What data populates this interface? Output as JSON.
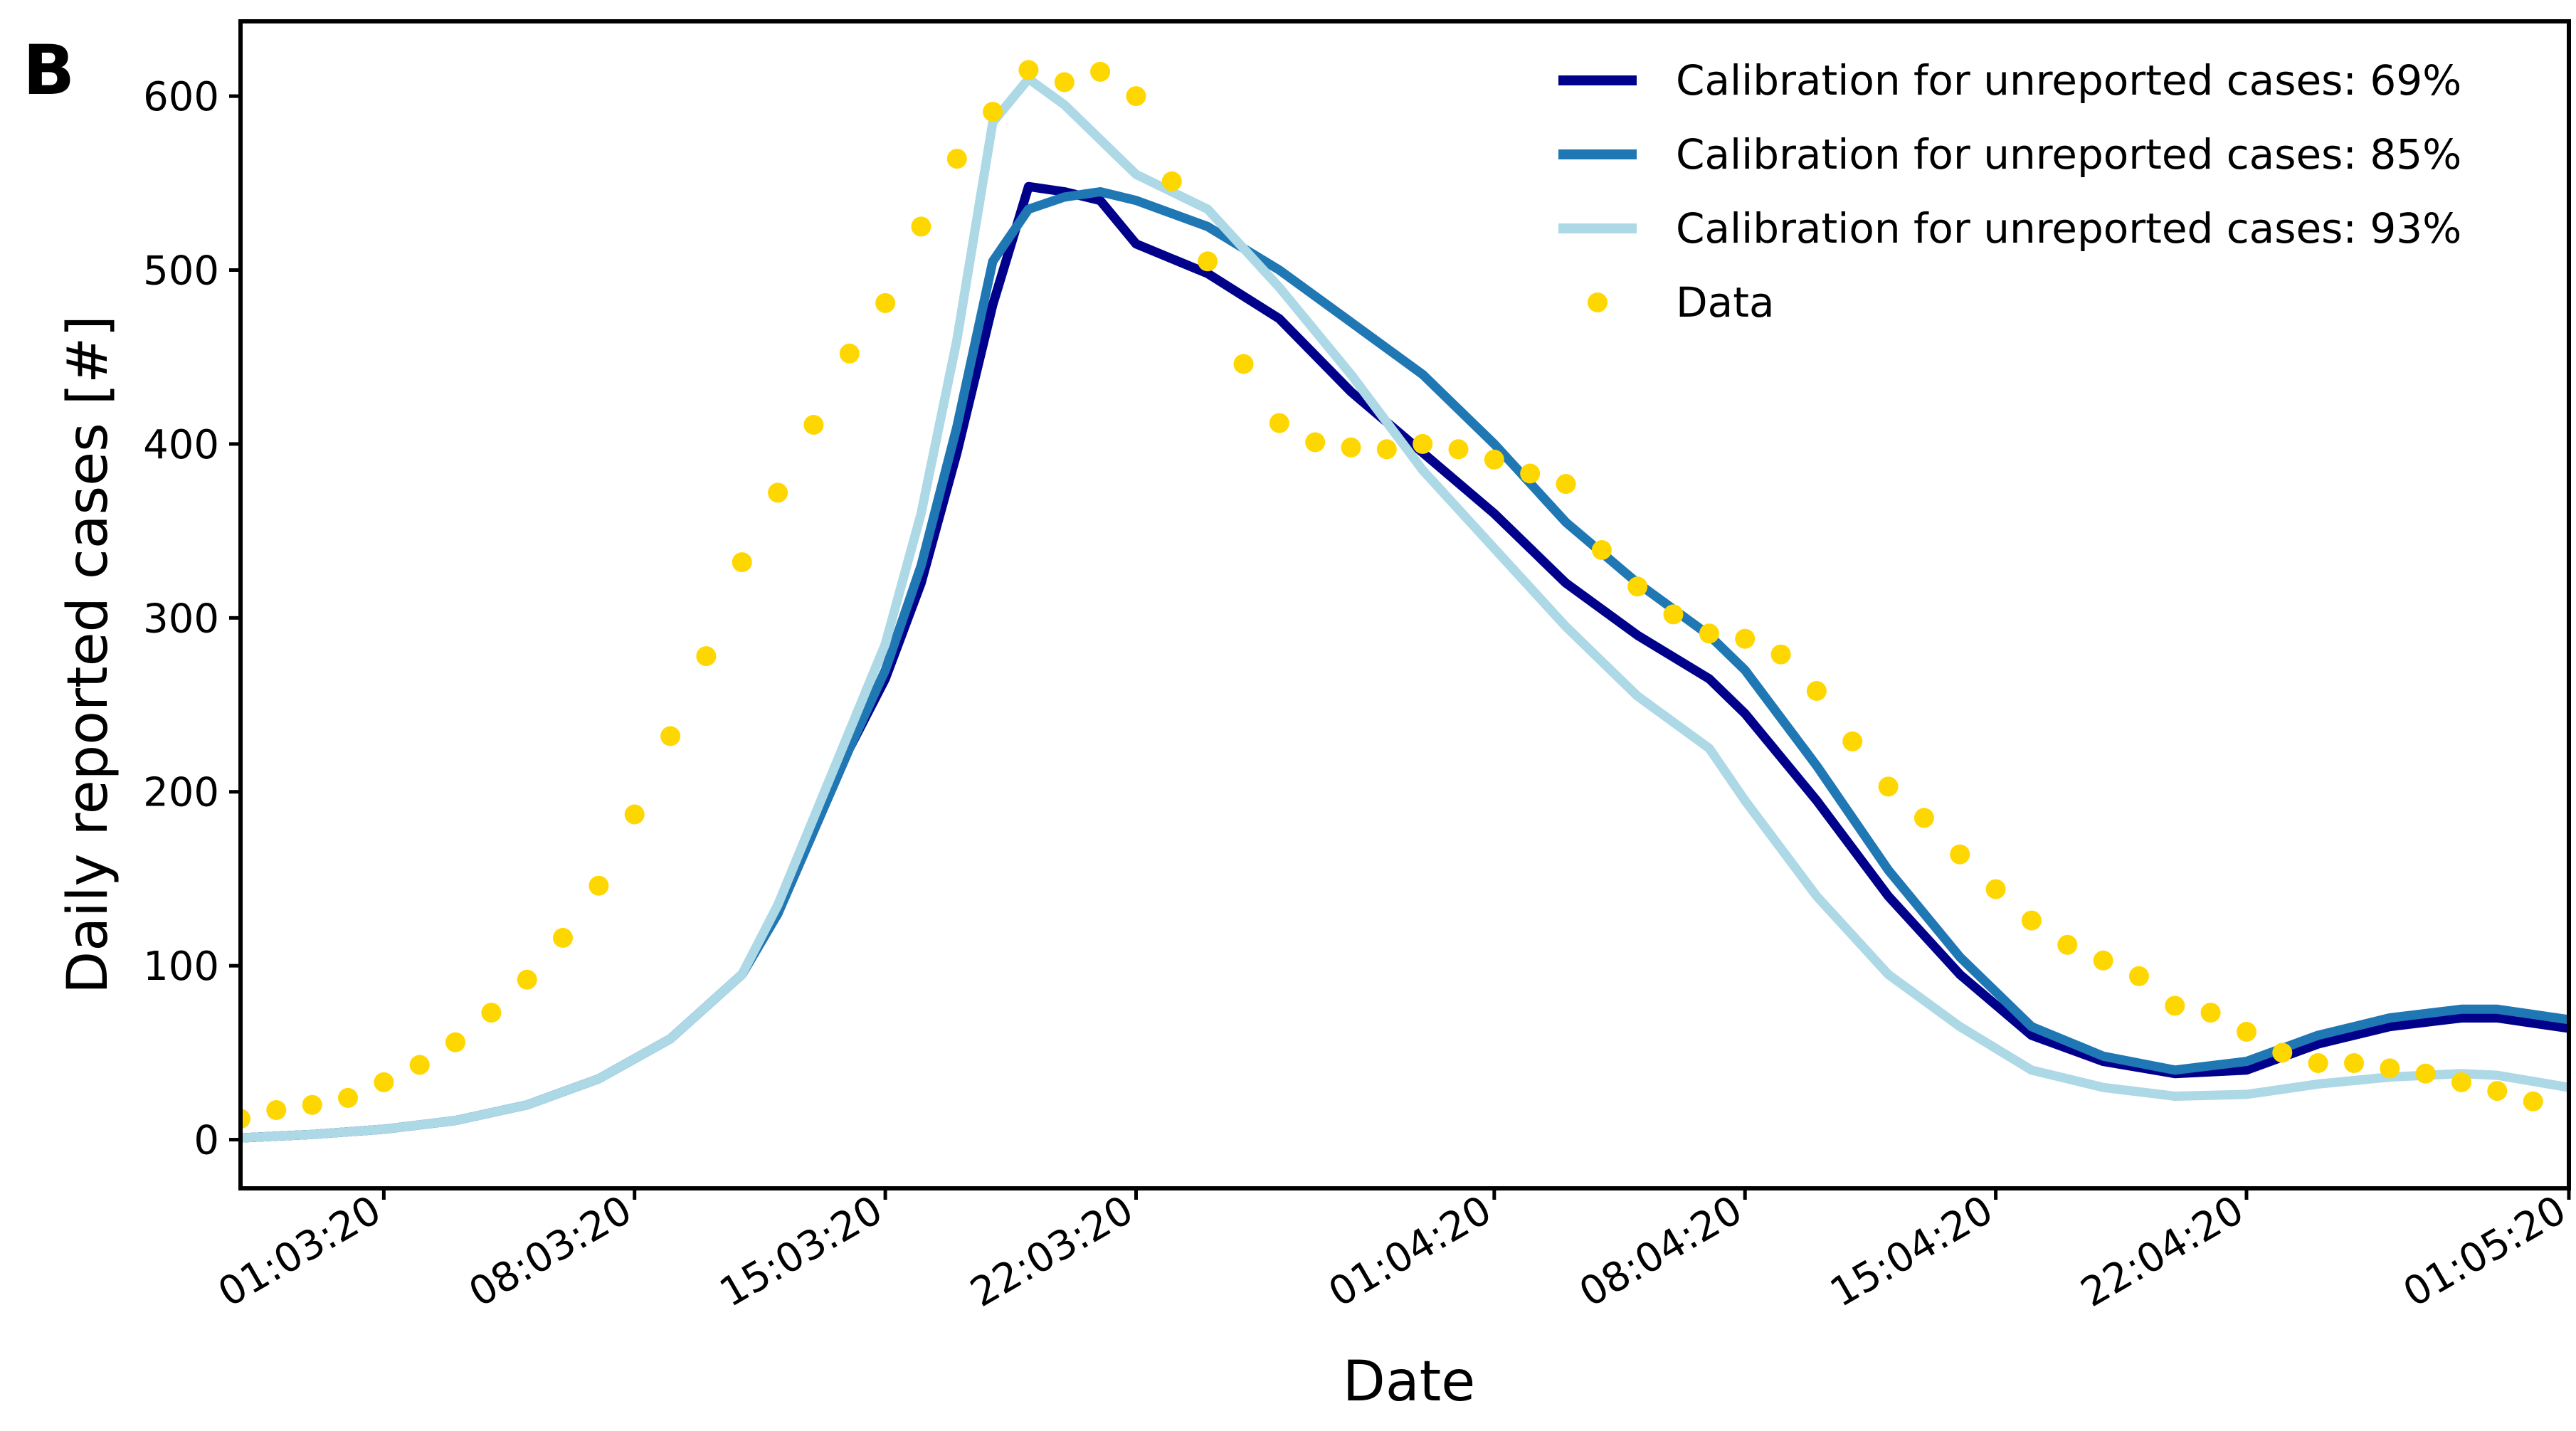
{
  "panel_label": "B",
  "chart_data": {
    "type": "line",
    "xlabel": "Date",
    "ylabel": "Daily reported cases [#]",
    "xlim": [
      "2020-02-26",
      "2020-05-01"
    ],
    "ylim": [
      -28,
      643
    ],
    "grid": false,
    "legend_position": "top-right",
    "y_ticks": [
      0,
      100,
      200,
      300,
      400,
      500,
      600
    ],
    "x_ticks": [
      {
        "date": "2020-03-01",
        "label": "01:03:20"
      },
      {
        "date": "2020-03-08",
        "label": "08:03:20"
      },
      {
        "date": "2020-03-15",
        "label": "15:03:20"
      },
      {
        "date": "2020-03-22",
        "label": "22:03:20"
      },
      {
        "date": "2020-04-01",
        "label": "01:04:20"
      },
      {
        "date": "2020-04-08",
        "label": "08:04:20"
      },
      {
        "date": "2020-04-15",
        "label": "15:04:20"
      },
      {
        "date": "2020-04-22",
        "label": "22:04:20"
      },
      {
        "date": "2020-05-01",
        "label": "01:05:20"
      }
    ],
    "series": [
      {
        "name": "Calibration for unreported cases: 69%",
        "kind": "line",
        "color": "#00008b",
        "points": [
          [
            "2020-02-26",
            1
          ],
          [
            "2020-02-28",
            3
          ],
          [
            "2020-03-01",
            6
          ],
          [
            "2020-03-03",
            11
          ],
          [
            "2020-03-05",
            20
          ],
          [
            "2020-03-07",
            35
          ],
          [
            "2020-03-09",
            58
          ],
          [
            "2020-03-11",
            95
          ],
          [
            "2020-03-12",
            130
          ],
          [
            "2020-03-14",
            225
          ],
          [
            "2020-03-15",
            265
          ],
          [
            "2020-03-16",
            320
          ],
          [
            "2020-03-17",
            395
          ],
          [
            "2020-03-18",
            480
          ],
          [
            "2020-03-19",
            548
          ],
          [
            "2020-03-20",
            545
          ],
          [
            "2020-03-21",
            540
          ],
          [
            "2020-03-22",
            515
          ],
          [
            "2020-03-24",
            498
          ],
          [
            "2020-03-26",
            472
          ],
          [
            "2020-03-28",
            430
          ],
          [
            "2020-03-30",
            395
          ],
          [
            "2020-04-01",
            360
          ],
          [
            "2020-04-03",
            320
          ],
          [
            "2020-04-05",
            290
          ],
          [
            "2020-04-07",
            265
          ],
          [
            "2020-04-08",
            245
          ],
          [
            "2020-04-10",
            195
          ],
          [
            "2020-04-12",
            140
          ],
          [
            "2020-04-14",
            95
          ],
          [
            "2020-04-16",
            60
          ],
          [
            "2020-04-18",
            45
          ],
          [
            "2020-04-20",
            38
          ],
          [
            "2020-04-22",
            40
          ],
          [
            "2020-04-24",
            55
          ],
          [
            "2020-04-26",
            65
          ],
          [
            "2020-04-28",
            70
          ],
          [
            "2020-04-29",
            70
          ],
          [
            "2020-05-01",
            64
          ]
        ]
      },
      {
        "name": "Calibration for unreported cases: 85%",
        "kind": "line",
        "color": "#1f77b4",
        "points": [
          [
            "2020-02-26",
            1
          ],
          [
            "2020-02-28",
            3
          ],
          [
            "2020-03-01",
            6
          ],
          [
            "2020-03-03",
            11
          ],
          [
            "2020-03-05",
            20
          ],
          [
            "2020-03-07",
            35
          ],
          [
            "2020-03-09",
            58
          ],
          [
            "2020-03-11",
            95
          ],
          [
            "2020-03-12",
            130
          ],
          [
            "2020-03-14",
            225
          ],
          [
            "2020-03-15",
            270
          ],
          [
            "2020-03-16",
            330
          ],
          [
            "2020-03-17",
            410
          ],
          [
            "2020-03-18",
            505
          ],
          [
            "2020-03-19",
            535
          ],
          [
            "2020-03-20",
            542
          ],
          [
            "2020-03-21",
            545
          ],
          [
            "2020-03-22",
            540
          ],
          [
            "2020-03-24",
            525
          ],
          [
            "2020-03-26",
            500
          ],
          [
            "2020-03-28",
            470
          ],
          [
            "2020-03-30",
            440
          ],
          [
            "2020-04-01",
            400
          ],
          [
            "2020-04-03",
            355
          ],
          [
            "2020-04-05",
            320
          ],
          [
            "2020-04-07",
            290
          ],
          [
            "2020-04-08",
            270
          ],
          [
            "2020-04-10",
            215
          ],
          [
            "2020-04-12",
            155
          ],
          [
            "2020-04-14",
            105
          ],
          [
            "2020-04-16",
            65
          ],
          [
            "2020-04-18",
            48
          ],
          [
            "2020-04-20",
            40
          ],
          [
            "2020-04-22",
            45
          ],
          [
            "2020-04-24",
            60
          ],
          [
            "2020-04-26",
            70
          ],
          [
            "2020-04-28",
            75
          ],
          [
            "2020-04-29",
            75
          ],
          [
            "2020-05-01",
            69
          ]
        ]
      },
      {
        "name": "Calibration for unreported cases: 93%",
        "kind": "line",
        "color": "#add8e6",
        "points": [
          [
            "2020-02-26",
            1
          ],
          [
            "2020-02-28",
            3
          ],
          [
            "2020-03-01",
            6
          ],
          [
            "2020-03-03",
            11
          ],
          [
            "2020-03-05",
            20
          ],
          [
            "2020-03-07",
            35
          ],
          [
            "2020-03-09",
            58
          ],
          [
            "2020-03-11",
            95
          ],
          [
            "2020-03-12",
            135
          ],
          [
            "2020-03-14",
            235
          ],
          [
            "2020-03-15",
            285
          ],
          [
            "2020-03-16",
            360
          ],
          [
            "2020-03-17",
            460
          ],
          [
            "2020-03-18",
            585
          ],
          [
            "2020-03-19",
            610
          ],
          [
            "2020-03-20",
            595
          ],
          [
            "2020-03-21",
            575
          ],
          [
            "2020-03-22",
            555
          ],
          [
            "2020-03-24",
            535
          ],
          [
            "2020-03-26",
            490
          ],
          [
            "2020-03-28",
            440
          ],
          [
            "2020-03-30",
            385
          ],
          [
            "2020-04-01",
            340
          ],
          [
            "2020-04-03",
            295
          ],
          [
            "2020-04-05",
            255
          ],
          [
            "2020-04-07",
            225
          ],
          [
            "2020-04-08",
            195
          ],
          [
            "2020-04-10",
            140
          ],
          [
            "2020-04-12",
            95
          ],
          [
            "2020-04-14",
            65
          ],
          [
            "2020-04-16",
            40
          ],
          [
            "2020-04-18",
            30
          ],
          [
            "2020-04-20",
            25
          ],
          [
            "2020-04-22",
            26
          ],
          [
            "2020-04-24",
            32
          ],
          [
            "2020-04-26",
            36
          ],
          [
            "2020-04-28",
            38
          ],
          [
            "2020-04-29",
            37
          ],
          [
            "2020-05-01",
            30
          ]
        ]
      },
      {
        "name": "Data",
        "kind": "scatter",
        "color": "#ffd700",
        "points": [
          [
            "2020-02-26",
            12
          ],
          [
            "2020-02-27",
            17
          ],
          [
            "2020-02-28",
            20
          ],
          [
            "2020-02-29",
            24
          ],
          [
            "2020-03-01",
            33
          ],
          [
            "2020-03-02",
            43
          ],
          [
            "2020-03-03",
            56
          ],
          [
            "2020-03-04",
            73
          ],
          [
            "2020-03-05",
            92
          ],
          [
            "2020-03-06",
            116
          ],
          [
            "2020-03-07",
            146
          ],
          [
            "2020-03-08",
            187
          ],
          [
            "2020-03-09",
            232
          ],
          [
            "2020-03-10",
            278
          ],
          [
            "2020-03-11",
            332
          ],
          [
            "2020-03-12",
            372
          ],
          [
            "2020-03-13",
            411
          ],
          [
            "2020-03-14",
            452
          ],
          [
            "2020-03-15",
            481
          ],
          [
            "2020-03-16",
            525
          ],
          [
            "2020-03-17",
            564
          ],
          [
            "2020-03-18",
            591
          ],
          [
            "2020-03-19",
            615
          ],
          [
            "2020-03-20",
            608
          ],
          [
            "2020-03-21",
            614
          ],
          [
            "2020-03-22",
            600
          ],
          [
            "2020-03-23",
            551
          ],
          [
            "2020-03-24",
            505
          ],
          [
            "2020-03-25",
            446
          ],
          [
            "2020-03-26",
            412
          ],
          [
            "2020-03-27",
            401
          ],
          [
            "2020-03-28",
            398
          ],
          [
            "2020-03-29",
            397
          ],
          [
            "2020-03-30",
            400
          ],
          [
            "2020-03-31",
            397
          ],
          [
            "2020-04-01",
            391
          ],
          [
            "2020-04-02",
            383
          ],
          [
            "2020-04-03",
            377
          ],
          [
            "2020-04-04",
            339
          ],
          [
            "2020-04-05",
            318
          ],
          [
            "2020-04-06",
            302
          ],
          [
            "2020-04-07",
            291
          ],
          [
            "2020-04-08",
            288
          ],
          [
            "2020-04-09",
            279
          ],
          [
            "2020-04-10",
            258
          ],
          [
            "2020-04-11",
            229
          ],
          [
            "2020-04-12",
            203
          ],
          [
            "2020-04-13",
            185
          ],
          [
            "2020-04-14",
            164
          ],
          [
            "2020-04-15",
            144
          ],
          [
            "2020-04-16",
            126
          ],
          [
            "2020-04-17",
            112
          ],
          [
            "2020-04-18",
            103
          ],
          [
            "2020-04-19",
            94
          ],
          [
            "2020-04-20",
            77
          ],
          [
            "2020-04-21",
            73
          ],
          [
            "2020-04-22",
            62
          ],
          [
            "2020-04-23",
            50
          ],
          [
            "2020-04-24",
            44
          ],
          [
            "2020-04-25",
            44
          ],
          [
            "2020-04-26",
            41
          ],
          [
            "2020-04-27",
            38
          ],
          [
            "2020-04-28",
            33
          ],
          [
            "2020-04-29",
            28
          ],
          [
            "2020-04-30",
            22
          ]
        ]
      }
    ]
  }
}
